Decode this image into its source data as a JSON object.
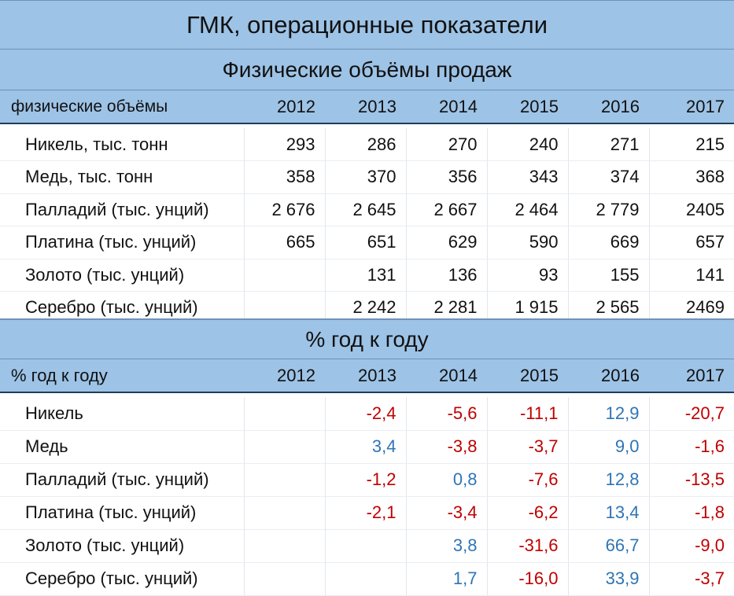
{
  "title": "ГМК, операционные показатели",
  "sales": {
    "section_title": "Физические объёмы продаж",
    "header_label": "физические объёмы",
    "years": [
      "2012",
      "2013",
      "2014",
      "2015",
      "2016",
      "2017"
    ],
    "rows": [
      {
        "label": "Никель, тыс. тонн",
        "values": [
          "293",
          "286",
          "270",
          "240",
          "271",
          "215"
        ]
      },
      {
        "label": "Медь, тыс. тонн",
        "values": [
          "358",
          "370",
          "356",
          "343",
          "374",
          "368"
        ]
      },
      {
        "label": "Палладий (тыс. унций)",
        "values": [
          "2 676",
          "2 645",
          "2 667",
          "2 464",
          "2 779",
          "2405"
        ]
      },
      {
        "label": "Платина (тыс. унций)",
        "values": [
          "665",
          "651",
          "629",
          "590",
          "669",
          "657"
        ]
      },
      {
        "label": "Золото (тыс. унций)",
        "values": [
          "",
          "131",
          "136",
          "93",
          "155",
          "141"
        ]
      },
      {
        "label": "Серебро (тыс. унций)",
        "values": [
          "",
          "2 242",
          "2 281",
          "1 915",
          "2 565",
          "2469"
        ]
      }
    ]
  },
  "yoy": {
    "section_title": "% год к году",
    "header_label": "% год к году",
    "years": [
      "2012",
      "2013",
      "2014",
      "2015",
      "2016",
      "2017"
    ],
    "rows": [
      {
        "label": "Никель",
        "values": [
          "",
          "-2,4",
          "-5,6",
          "-11,1",
          "12,9",
          "-20,7"
        ]
      },
      {
        "label": "Медь",
        "values": [
          "",
          "3,4",
          "-3,8",
          "-3,7",
          "9,0",
          "-1,6"
        ]
      },
      {
        "label": "Палладий (тыс. унций)",
        "values": [
          "",
          "-1,2",
          "0,8",
          "-7,6",
          "12,8",
          "-13,5"
        ]
      },
      {
        "label": "Платина (тыс. унций)",
        "values": [
          "",
          "-2,1",
          "-3,4",
          "-6,2",
          "13,4",
          "-1,8"
        ]
      },
      {
        "label": "Золото (тыс. унций)",
        "values": [
          "",
          "",
          "3,8",
          "-31,6",
          "66,7",
          "-9,0"
        ]
      },
      {
        "label": "Серебро (тыс. унций)",
        "values": [
          "",
          "",
          "1,7",
          "-16,0",
          "33,9",
          "-3,7"
        ]
      }
    ]
  },
  "colors": {
    "header_bg": "#9dc3e6",
    "negative": "#c00000",
    "positive": "#2e75b6"
  }
}
